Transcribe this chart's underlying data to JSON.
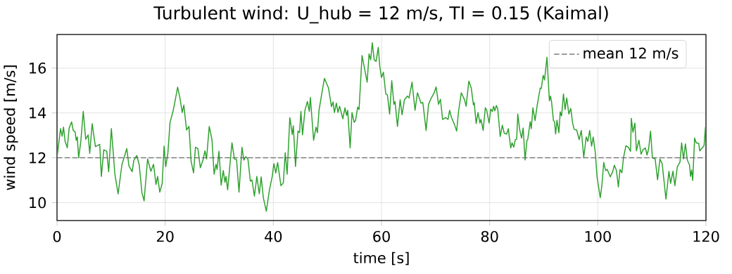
{
  "chart_data": {
    "type": "line",
    "title": "Turbulent wind: U_hub = 12 m/s, TI = 0.15 (Kaimal)",
    "xlabel": "time [s]",
    "ylabel": "wind speed [m/s]",
    "x": [
      0,
      0.65,
      0.95,
      1.2,
      1.5,
      1.9,
      2.25,
      2.7,
      3.0,
      3.35,
      3.55,
      3.75,
      4.0,
      4.4,
      4.85,
      5.3,
      5.75,
      6.05,
      6.5,
      7.1,
      7.45,
      7.9,
      8.2,
      8.65,
      9.2,
      9.55,
      10.05,
      10.7,
      11.3,
      12.0,
      12.9,
      13.3,
      13.9,
      14.2,
      14.75,
      15.2,
      15.7,
      16.1,
      16.75,
      17.35,
      17.85,
      18.3,
      18.6,
      19.0,
      19.45,
      19.8,
      20.1,
      20.5,
      20.9,
      21.45,
      21.8,
      22.3,
      22.75,
      23.15,
      23.45,
      23.95,
      24.4,
      24.8,
      25.25,
      25.6,
      26.05,
      26.5,
      27.0,
      27.35,
      27.65,
      28.15,
      28.65,
      29.05,
      29.4,
      29.6,
      29.95,
      30.35,
      30.75,
      31.05,
      31.25,
      31.55,
      32.35,
      32.8,
      33.2,
      33.65,
      34.2,
      34.55,
      34.9,
      35.3,
      35.75,
      36.05,
      36.5,
      36.95,
      37.4,
      37.75,
      38.15,
      38.7,
      39.3,
      39.8,
      40.1,
      40.45,
      40.8,
      41.4,
      41.85,
      42.2,
      42.55,
      43.05,
      43.5,
      43.7,
      44.1,
      44.55,
      44.85,
      45.1,
      45.4,
      45.85,
      46.3,
      46.65,
      46.85,
      47.45,
      47.9,
      48.15,
      48.45,
      49.0,
      49.45,
      50.2,
      50.75,
      51.05,
      51.3,
      51.65,
      51.95,
      52.25,
      52.85,
      53.25,
      53.55,
      53.75,
      54.2,
      54.55,
      54.95,
      55.2,
      55.6,
      55.85,
      56.4,
      56.9,
      57.35,
      57.7,
      58.0,
      58.3,
      58.65,
      59.0,
      59.4,
      59.7,
      60.0,
      60.35,
      60.8,
      61.1,
      61.5,
      61.9,
      62.3,
      62.5,
      62.95,
      63.45,
      63.8,
      64.25,
      64.8,
      65.1,
      65.65,
      66.2,
      66.65,
      67.3,
      67.65,
      68.25,
      68.7,
      69.15,
      69.7,
      70.1,
      70.55,
      70.9,
      71.3,
      71.85,
      72.3,
      72.6,
      72.95,
      73.5,
      73.9,
      74.25,
      74.75,
      75.35,
      75.65,
      76.15,
      76.6,
      77.0,
      77.15,
      77.5,
      77.85,
      78.2,
      78.4,
      78.8,
      79.2,
      79.45,
      79.9,
      80.2,
      80.5,
      80.75,
      80.95,
      81.25,
      81.5,
      81.95,
      82.35,
      82.7,
      83.15,
      83.45,
      83.9,
      84.15,
      84.45,
      84.75,
      85.0,
      85.2,
      85.55,
      85.9,
      86.2,
      86.55,
      86.9,
      87.05,
      87.5,
      87.7,
      88.0,
      88.4,
      88.8,
      89.35,
      89.55,
      89.9,
      90.15,
      90.6,
      91.05,
      91.25,
      91.45,
      91.8,
      92.0,
      92.2,
      92.45,
      92.8,
      93.05,
      93.3,
      93.65,
      93.95,
      94.25,
      94.65,
      95.0,
      95.35,
      95.65,
      96.1,
      96.55,
      96.95,
      97.4,
      97.85,
      98.15,
      98.5,
      98.85,
      99.15,
      99.55,
      99.85,
      100.45,
      100.75,
      101.1,
      101.45,
      101.75,
      102.3,
      102.75,
      103.05,
      103.45,
      103.8,
      104.1,
      104.45,
      104.75,
      105.2,
      105.65,
      106.05,
      106.2,
      106.5,
      106.85,
      107.15,
      107.6,
      108.0,
      108.35,
      108.8,
      109.1,
      109.4,
      109.75,
      110.1,
      110.6,
      111.05,
      111.5,
      111.9,
      112.6,
      113.15,
      113.45,
      113.9,
      114.25,
      114.7,
      115.2,
      115.5,
      115.85,
      116.2,
      116.55,
      116.95,
      117.15,
      117.35,
      117.55,
      117.9,
      118.2,
      118.65,
      118.85,
      119.3,
      119.65,
      119.9
    ],
    "values": [
      12.0,
      13.3,
      12.96,
      13.37,
      12.73,
      12.45,
      13.33,
      13.6,
      13.22,
      13.16,
      12.78,
      12.93,
      12.0,
      12.73,
      14.07,
      12.83,
      13.02,
      12.2,
      13.52,
      12.5,
      12.54,
      12.6,
      11.17,
      12.36,
      12.29,
      11.38,
      13.3,
      11.27,
      10.39,
      11.69,
      12.41,
      11.64,
      11.38,
      11.88,
      12.1,
      11.69,
      10.45,
      10.08,
      11.95,
      11.4,
      11.71,
      10.81,
      11.17,
      10.47,
      10.86,
      12.52,
      11.61,
      12.21,
      13.58,
      14.07,
      14.49,
      15.15,
      14.64,
      14.02,
      14.35,
      13.24,
      13.4,
      11.84,
      11.33,
      12.47,
      12.41,
      11.56,
      11.9,
      12.31,
      11.95,
      13.4,
      12.81,
      11.27,
      11.71,
      11.48,
      12.29,
      10.78,
      11.43,
      10.91,
      11.17,
      10.57,
      12.67,
      11.95,
      11.92,
      10.47,
      12.47,
      11.9,
      12.05,
      11.95,
      10.96,
      11.01,
      10.29,
      11.17,
      10.39,
      11.15,
      10.22,
      9.62,
      10.6,
      11.17,
      11.74,
      11.33,
      11.79,
      10.76,
      10.88,
      12.23,
      11.27,
      13.79,
      13.04,
      13.43,
      11.61,
      13.19,
      13.12,
      14.07,
      13.02,
      14.12,
      14.51,
      14.07,
      14.69,
      12.78,
      13.37,
      13.12,
      14.12,
      14.92,
      15.54,
      15.11,
      14.28,
      14.49,
      14.02,
      14.44,
      14.02,
      14.3,
      13.74,
      14.23,
      13.89,
      14.12,
      12.44,
      14.02,
      13.58,
      13.66,
      14.26,
      14.15,
      16.56,
      15.94,
      15.37,
      16.63,
      16.37,
      17.13,
      16.37,
      16.3,
      16.92,
      16.04,
      15.58,
      15.82,
      14.85,
      14.8,
      13.95,
      15.44,
      14.38,
      14.51,
      13.4,
      14.59,
      13.92,
      14.59,
      14.75,
      14.67,
      15.37,
      14.12,
      14.9,
      14.44,
      14.46,
      13.22,
      14.38,
      14.64,
      14.88,
      15.16,
      14.38,
      14.61,
      13.71,
      13.79,
      13.71,
      14.12,
      13.79,
      13.48,
      13.19,
      14.07,
      14.9,
      14.59,
      14.3,
      15.42,
      15.11,
      14.36,
      14.46,
      13.53,
      14.02,
      13.55,
      13.71,
      13.22,
      14.23,
      14.12,
      13.55,
      14.17,
      14.07,
      14.3,
      14.09,
      14.33,
      14.17,
      12.95,
      13.45,
      13.09,
      13.06,
      13.3,
      12.44,
      12.67,
      12.47,
      12.81,
      12.83,
      13.95,
      13.26,
      12.88,
      13.33,
      11.9,
      12.78,
      12.83,
      13.61,
      13.3,
      14.23,
      13.66,
      14.36,
      15.11,
      15.09,
      15.68,
      15.47,
      16.48,
      14.54,
      14.75,
      14.49,
      13.66,
      13.61,
      13.06,
      13.68,
      13.12,
      14.05,
      13.87,
      14.85,
      14.15,
      14.67,
      13.95,
      14.2,
      13.53,
      13.26,
      13.24,
      12.81,
      13.22,
      12.02,
      12.93,
      12.73,
      13.22,
      12.52,
      12.93,
      12.21,
      11.17,
      10.22,
      10.76,
      11.79,
      11.43,
      11.48,
      11.15,
      11.38,
      11.67,
      11.43,
      10.7,
      11.48,
      11.33,
      12.0,
      12.54,
      12.47,
      12.29,
      13.76,
      13.14,
      13.55,
      12.31,
      12.78,
      12.16,
      12.36,
      12.44,
      12.12,
      12.41,
      13.19,
      12.0,
      11.95,
      11.02,
      11.95,
      11.74,
      10.16,
      11.4,
      10.86,
      11.4,
      10.76,
      11.59,
      11.81,
      12.67,
      11.95,
      12.62,
      11.9,
      11.69,
      11.17,
      11.46,
      10.99,
      12.88,
      12.67,
      12.64,
      12.31,
      12.44,
      12.54,
      13.37
    ],
    "color": "#2ca02c",
    "line_style": "solid",
    "xlim": [
      0,
      120
    ],
    "ylim": [
      9.2,
      17.5
    ],
    "xticks": [
      0,
      20,
      40,
      60,
      80,
      100,
      120
    ],
    "yticks": [
      10,
      12,
      14,
      16
    ],
    "grid": true,
    "legend": "top right",
    "ref_lines": [
      {
        "axis": "y",
        "value": 12,
        "label": "mean 12 m/s",
        "color": "#666666",
        "line_style": "dashed"
      }
    ]
  }
}
